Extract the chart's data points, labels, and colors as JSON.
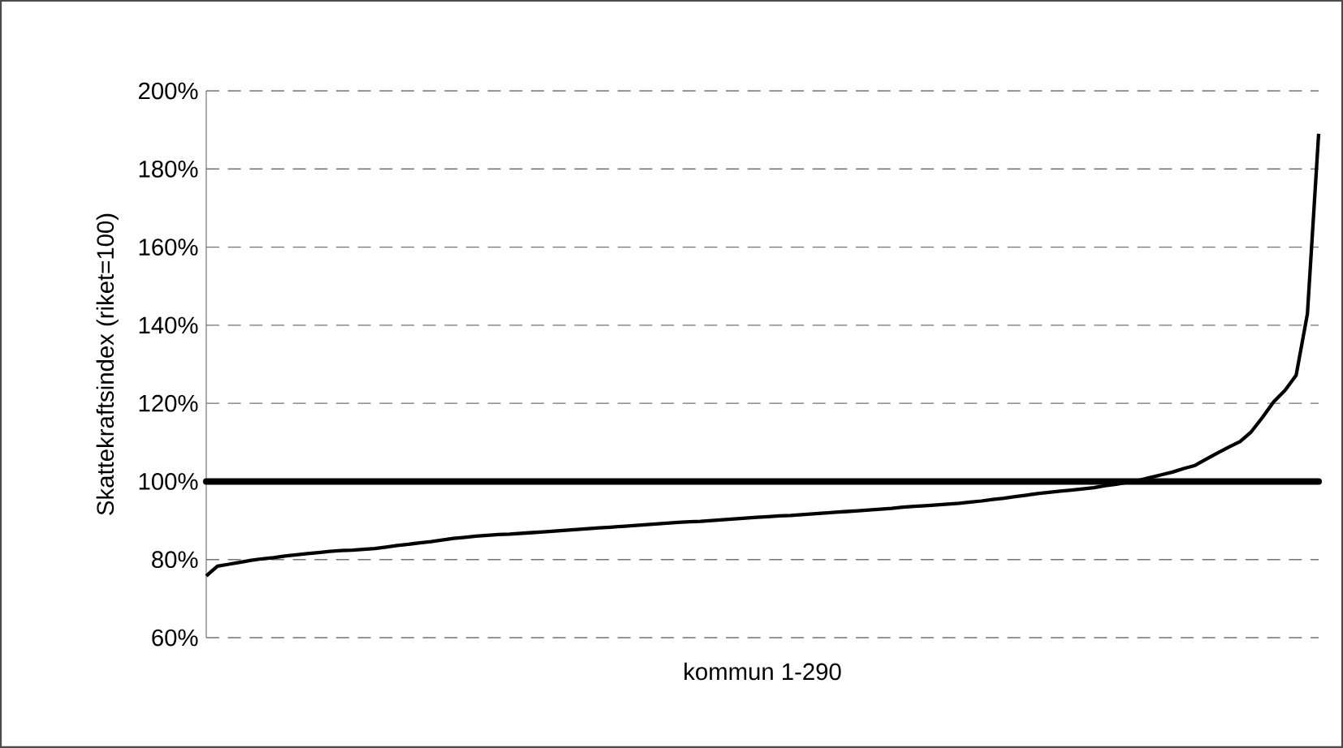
{
  "chart_data": {
    "type": "line",
    "xlabel": "kommun 1-290",
    "ylabel": "Skattekraftsindex (riket=100)",
    "categories": [
      null,
      null,
      null,
      null,
      null,
      null,
      null,
      null,
      null,
      null,
      null,
      null,
      null,
      null,
      null,
      null,
      null,
      null,
      null,
      null,
      null,
      null,
      null,
      null,
      null,
      null,
      null,
      null,
      null,
      null,
      null,
      null,
      null,
      null,
      null,
      null,
      null,
      null,
      null,
      null,
      null,
      null,
      null,
      null,
      null,
      null,
      null,
      null,
      null,
      null,
      null,
      null,
      null,
      null,
      null,
      null,
      null,
      null,
      null,
      null,
      null,
      null,
      null,
      null,
      null,
      null,
      null,
      null,
      null,
      null,
      null,
      null,
      null,
      null,
      null,
      null,
      null,
      null,
      null,
      null,
      null,
      null,
      null,
      null,
      null,
      null,
      null,
      null,
      null,
      null,
      null,
      null,
      null,
      null,
      null,
      null,
      null,
      null,
      null,
      null
    ],
    "series": [
      {
        "color": "#000000",
        "values": [
          75.8,
          78.3,
          78.8,
          79.3,
          79.8,
          80.2,
          80.5,
          80.9,
          81.2,
          81.5,
          81.8,
          82.1,
          82.3,
          82.4,
          82.6,
          82.8,
          83.2,
          83.6,
          83.9,
          84.3,
          84.6,
          85.0,
          85.4,
          85.7,
          86.0,
          86.2,
          86.4,
          86.5,
          86.7,
          86.9,
          87.1,
          87.3,
          87.5,
          87.7,
          87.9,
          88.1,
          88.3,
          88.5,
          88.7,
          88.9,
          89.1,
          89.3,
          89.5,
          89.7,
          89.8,
          90.0,
          90.2,
          90.4,
          90.6,
          90.8,
          91.0,
          91.2,
          91.3,
          91.5,
          91.7,
          91.9,
          92.1,
          92.3,
          92.5,
          92.7,
          92.9,
          93.1,
          93.4,
          93.6,
          93.8,
          94.0,
          94.2,
          94.4,
          94.7,
          95.0,
          95.4,
          95.7,
          96.1,
          96.5,
          96.9,
          97.2,
          97.5,
          97.8,
          98.1,
          98.4,
          98.9,
          99.3,
          99.8,
          100.3,
          101.0,
          101.7,
          102.4,
          103.3,
          104.1,
          105.7,
          107.3,
          108.8,
          110.2,
          112.7,
          116.4,
          120.4,
          123.3,
          127.2,
          142.9,
          189
        ]
      }
    ],
    "ylim": [
      60,
      200
    ],
    "yticks": [
      {
        "value": 60,
        "label": "60%"
      },
      {
        "value": 80,
        "label": "80%"
      },
      {
        "value": 100,
        "label": "100%"
      },
      {
        "value": 120,
        "label": "120%"
      },
      {
        "value": 140,
        "label": "140%"
      },
      {
        "value": 160,
        "label": "160%"
      },
      {
        "value": 180,
        "label": "180%"
      },
      {
        "value": 200,
        "label": "200%"
      }
    ],
    "grid": "y",
    "ref_lines": [
      {
        "axis": "y",
        "value": 100,
        "color": "#000000"
      }
    ]
  }
}
